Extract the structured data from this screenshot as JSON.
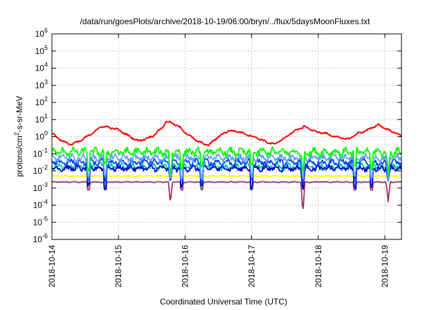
{
  "chart_data": {
    "type": "line",
    "title": "/data/run/goesPlots/archive/2018-10-19/06:00/bryn/../flux/5daysMoonFluxes.txt",
    "xlabel": "Coordinated Universal Time (UTC)",
    "ylabel": {
      "prefix": "protons/cm",
      "sup": "2",
      "suffix": "-s-sr-MeV"
    },
    "y_scale": "log",
    "ylim_exp": [
      -6,
      6
    ],
    "ytick_exps": [
      -6,
      -5,
      -4,
      -3,
      -2,
      -1,
      0,
      1,
      2,
      3,
      4,
      5,
      6
    ],
    "ytick_labels": [
      "10-6",
      "10-5",
      "10-4",
      "10-3",
      "10-2",
      "10-1",
      "100",
      "101",
      "102",
      "103",
      "104",
      "105",
      "106"
    ],
    "xlim_days": [
      0,
      5.25
    ],
    "xtick_days": [
      0,
      1,
      2,
      3,
      4,
      5
    ],
    "xtick_labels": [
      "2018-10-14",
      "2018-10-15",
      "2018-10-16",
      "2018-10-17",
      "2018-10-18",
      "2018-10-19"
    ],
    "grid": true,
    "legend": "none",
    "dip_days": [
      0.55,
      0.8,
      1.95,
      2.25,
      3.0,
      4.55,
      4.8
    ],
    "deep_dip_days": [
      1.78,
      3.77,
      5.05
    ],
    "deep_dip_exps": [
      -3.9,
      -4.5,
      -3.8
    ],
    "series": [
      {
        "color": "#ff0000",
        "x": [
          0,
          0.1,
          0.2,
          0.3,
          0.45,
          0.6,
          0.75,
          0.85,
          1.0,
          1.15,
          1.3,
          1.5,
          1.65,
          1.72,
          1.8,
          1.9,
          2.05,
          2.2,
          2.35,
          2.5,
          2.65,
          2.8,
          2.95,
          3.1,
          3.25,
          3.35,
          3.5,
          3.65,
          3.8,
          3.95,
          4.1,
          4.3,
          4.45,
          4.6,
          4.75,
          4.9,
          5.05,
          5.2,
          5.25
        ],
        "y_exp": [
          0.2,
          -0.1,
          -0.35,
          -0.45,
          -0.2,
          0.2,
          0.6,
          0.55,
          0.4,
          0.05,
          -0.25,
          0,
          0.5,
          0.9,
          0.8,
          0.6,
          0.1,
          -0.3,
          -0.5,
          0,
          0.35,
          0.3,
          0.1,
          -0.1,
          -0.35,
          -0.45,
          -0.05,
          0.35,
          0.6,
          0.3,
          0.2,
          -0.05,
          -0.15,
          0.2,
          0.4,
          0.7,
          0.4,
          0.15,
          0.05
        ]
      },
      {
        "color": "#00ff00",
        "x": [
          0,
          5.25
        ],
        "y_exp": [
          -0.9,
          -0.9
        ]
      },
      {
        "color": "#5fa0ff",
        "x": [
          0,
          5.25
        ],
        "y_exp": [
          -1.25,
          -1.25
        ]
      },
      {
        "color": "#0044ff",
        "x": [
          0,
          5.25
        ],
        "y_exp": [
          -1.5,
          -1.5
        ]
      },
      {
        "color": "#00cc99",
        "x": [
          0,
          5.25
        ],
        "y_exp": [
          -1.75,
          -1.75
        ]
      },
      {
        "color": "#0000cc",
        "x": [
          0,
          5.25
        ],
        "y_exp": [
          -1.85,
          -1.85
        ]
      },
      {
        "color": "#ffff00",
        "x": [
          0,
          5.25
        ],
        "y_exp": [
          -2.3,
          -2.3
        ]
      },
      {
        "color": "#993366",
        "x": [
          0,
          5.25
        ],
        "y_exp": [
          -2.65,
          -2.65
        ]
      }
    ]
  }
}
